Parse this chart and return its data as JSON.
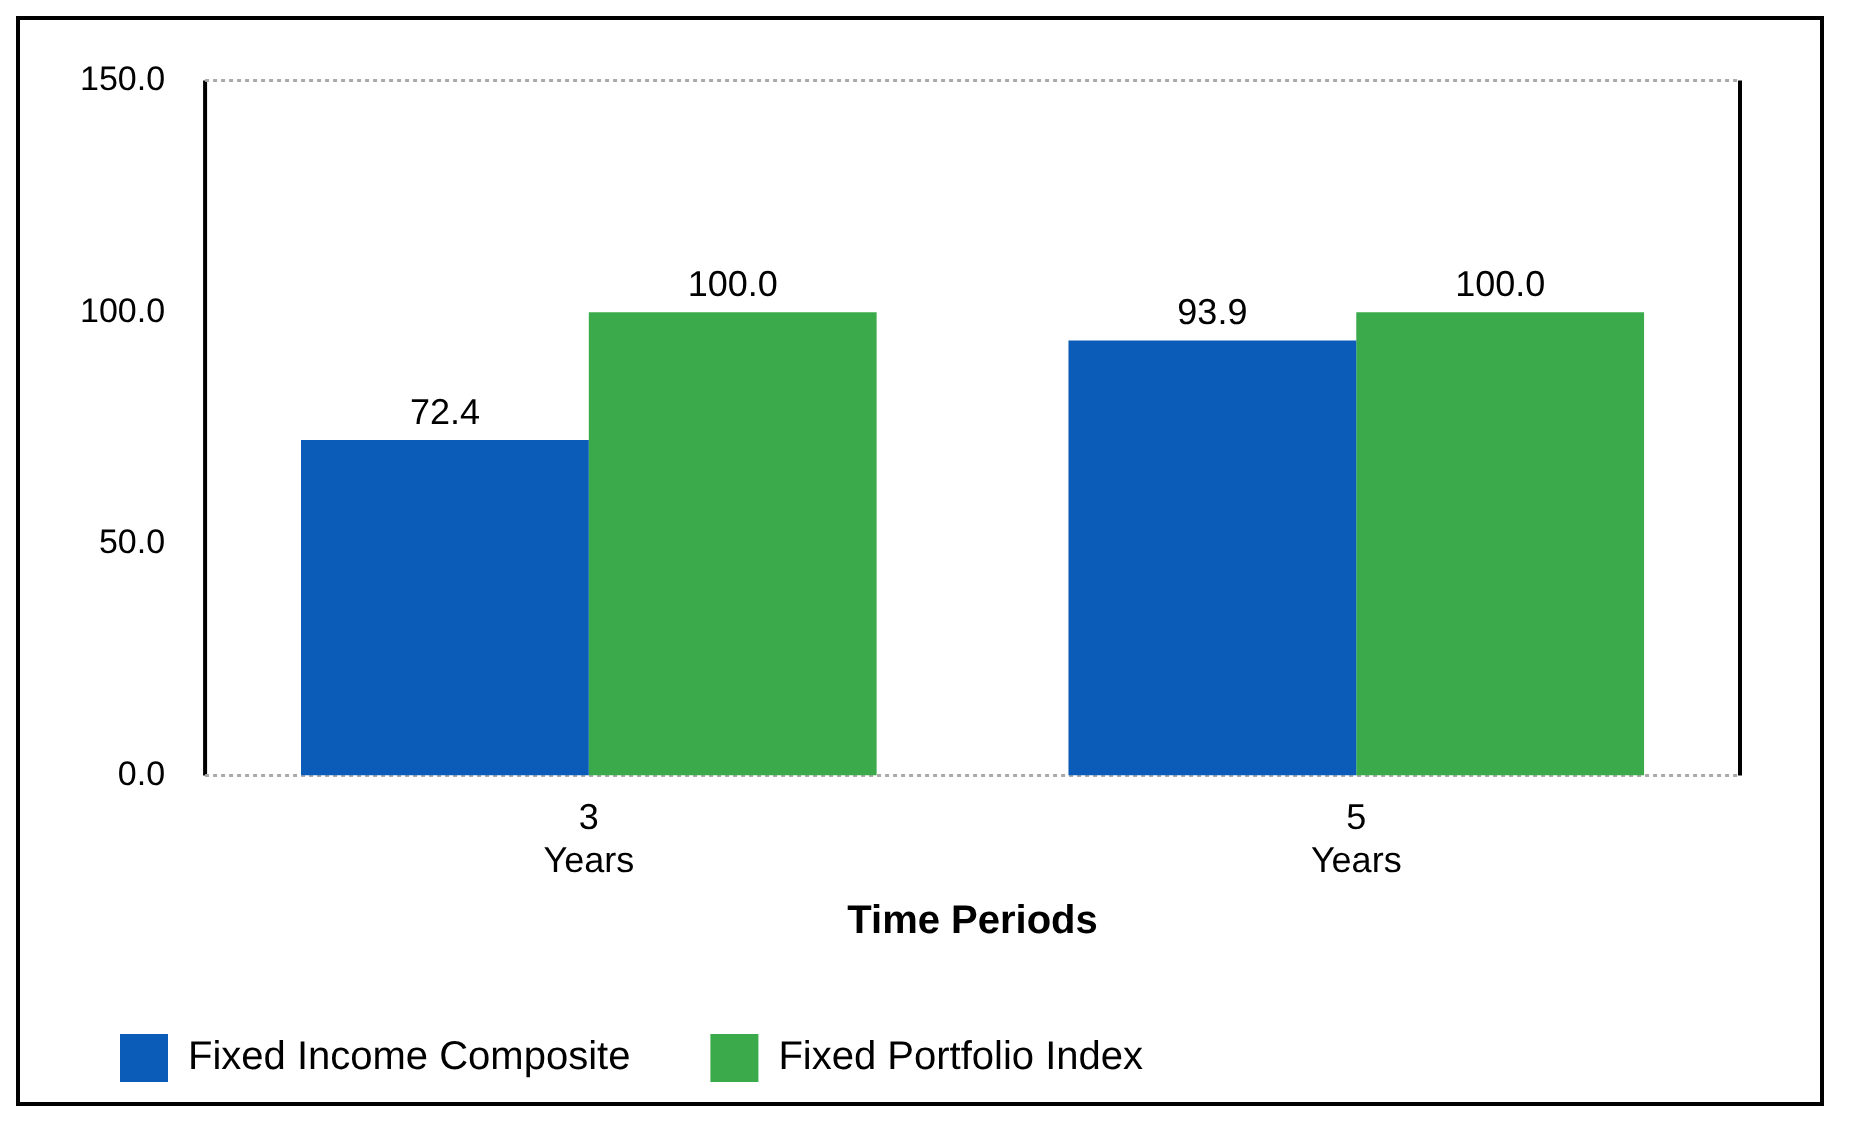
{
  "chart_data": {
    "type": "bar",
    "xlabel": "Time Periods",
    "categories": [
      "3 Years",
      "5 Years"
    ],
    "series": [
      {
        "name": "Fixed Income Composite",
        "color": "#0a5cb8",
        "values": [
          72.4,
          93.9
        ],
        "value_labels": [
          "72.4",
          "93.9"
        ]
      },
      {
        "name": "Fixed Portfolio Index",
        "color": "#3aaa4a",
        "values": [
          100.0,
          100.0
        ],
        "value_labels": [
          "100.0",
          "100.0"
        ]
      }
    ],
    "ylim": [
      0,
      150
    ],
    "yticks": [
      {
        "value": 0,
        "label": "0.0"
      },
      {
        "value": 50,
        "label": "50.0"
      },
      {
        "value": 100,
        "label": "100.0"
      },
      {
        "value": 150,
        "label": "150.0"
      }
    ],
    "grid": false,
    "legend": "bottom left"
  }
}
